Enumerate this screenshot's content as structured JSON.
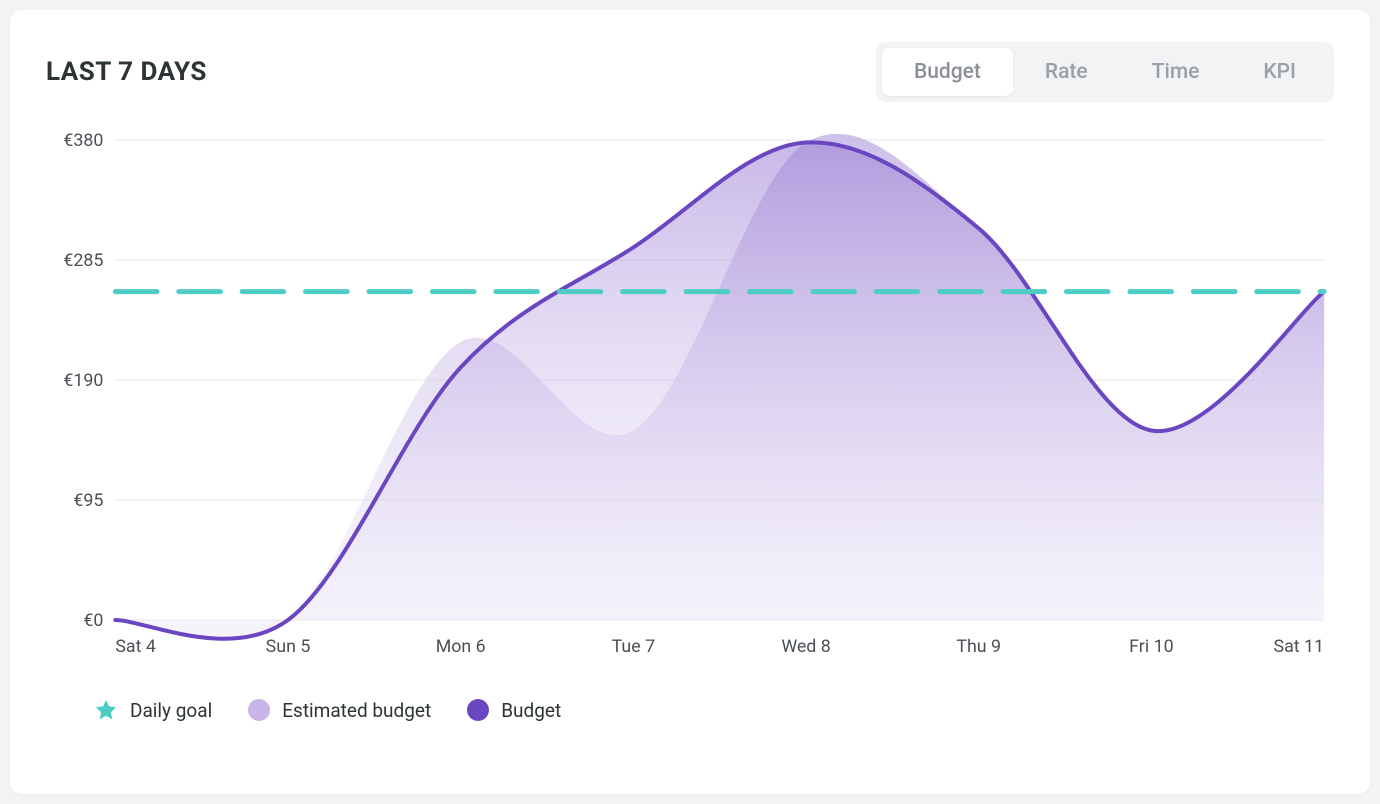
{
  "header": {
    "title": "LAST 7 DAYS"
  },
  "tabs": {
    "items": [
      {
        "label": "Budget",
        "active": true
      },
      {
        "label": "Rate",
        "active": false
      },
      {
        "label": "Time",
        "active": false
      },
      {
        "label": "KPI",
        "active": false
      }
    ]
  },
  "chart": {
    "type": "area",
    "background_color": "#ffffff",
    "grid_color": "#e8eaed",
    "axis_text_color": "#4a4f55",
    "axis_fontsize": 18,
    "title_fontsize": 26,
    "x_categories": [
      "Sat 4",
      "Sun 5",
      "Mon 6",
      "Tue 7",
      "Wed 8",
      "Thu 9",
      "Fri 10",
      "Sat 11"
    ],
    "y_axis": {
      "prefix": "€",
      "ticks": [
        0,
        95,
        190,
        285,
        380
      ],
      "min": 0,
      "max": 380
    },
    "series": {
      "daily_goal": {
        "label": "Daily goal",
        "style": "dashed",
        "value": 260,
        "color": "#4ecdc4",
        "stroke_width": 5,
        "dash": "42 22"
      },
      "estimated_budget": {
        "label": "Estimated budget",
        "style": "area-only",
        "fill_color_top": "#c4b5e6",
        "fill_color_bottom": "#eae4f5",
        "fill_opacity": 0.85,
        "swatch_color": "#c8b6e8",
        "values": [
          0,
          0,
          220,
          150,
          378,
          310,
          150,
          260
        ]
      },
      "budget": {
        "label": "Budget",
        "style": "line-area",
        "line_color": "#6b46c1",
        "stroke_width": 4,
        "fill_color_top": "#9b7fd4",
        "fill_color_bottom": "#f0ebfa",
        "fill_opacity": 0.55,
        "swatch_color": "#6b46c1",
        "values": [
          0,
          0,
          200,
          295,
          378,
          310,
          150,
          260
        ]
      }
    }
  },
  "legend": {
    "items": [
      {
        "key": "daily_goal",
        "label": "Daily goal",
        "shape": "star",
        "color": "#4ecdc4"
      },
      {
        "key": "estimated_budget",
        "label": "Estimated budget",
        "shape": "dot",
        "color": "#c8b6e8"
      },
      {
        "key": "budget",
        "label": "Budget",
        "shape": "dot",
        "color": "#6b46c1"
      }
    ]
  }
}
